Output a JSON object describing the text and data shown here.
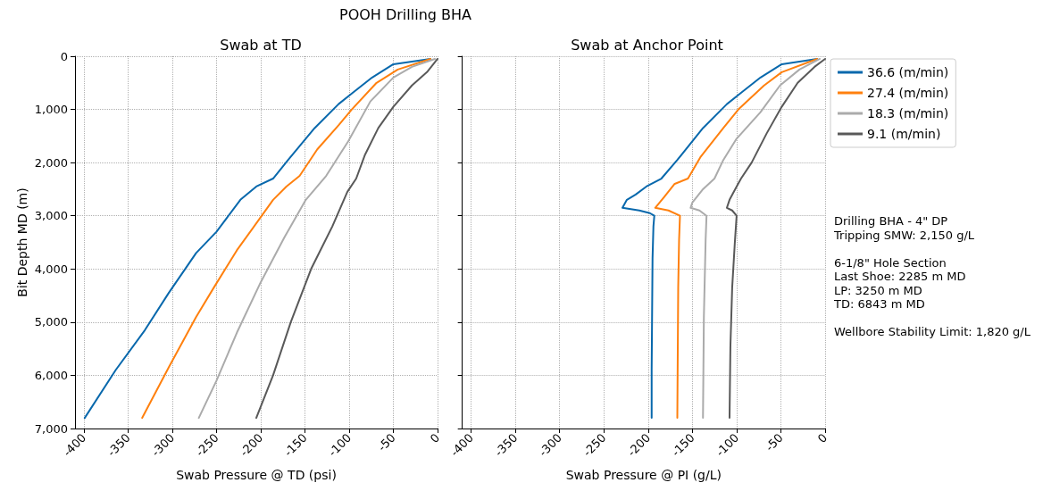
{
  "chart_data": [
    {
      "type": "line",
      "title": "Swab at TD",
      "annotations": [
        "POOH Drilling BHA"
      ],
      "xlabel": "Swab Pressure @ TD (psi)",
      "ylabel": "Bit Depth MD (m)",
      "xlim": [
        -410,
        0
      ],
      "ylim": [
        7000,
        0
      ],
      "xticks": [
        -400,
        -350,
        -300,
        -250,
        -200,
        -150,
        -100,
        -50,
        0
      ],
      "yticks": [
        0,
        {
          "value": 1000,
          "label": "1,000"
        },
        {
          "value": 2000,
          "label": "2,000"
        },
        {
          "value": 3000,
          "label": "3,000"
        },
        {
          "value": 4000,
          "label": "4,000"
        },
        {
          "value": 5000,
          "label": "5,000"
        },
        {
          "value": 6000,
          "label": "6,000"
        },
        {
          "value": 7000,
          "label": "7,000"
        }
      ],
      "grid": true,
      "legend": false,
      "line_style": "solid",
      "marker": "none",
      "series": [
        {
          "color": "#0868ac",
          "x": [
            -8,
            -50,
            -74,
            -97,
            -112,
            -139,
            -169,
            -186,
            -205,
            -223,
            -250,
            -273,
            -304,
            -331,
            -364,
            -399
          ],
          "values": [
            50,
            150,
            400,
            700,
            900,
            1350,
            1950,
            2300,
            2450,
            2700,
            3300,
            3700,
            4450,
            5150,
            5900,
            6800
          ]
        },
        {
          "color": "#ff800e",
          "x": [
            -8,
            -45,
            -69,
            -97,
            -112,
            -136,
            -156,
            -171,
            -186,
            -201,
            -227,
            -253,
            -273,
            -304,
            -334
          ],
          "values": [
            50,
            250,
            500,
            1000,
            1300,
            1750,
            2250,
            2450,
            2700,
            3050,
            3650,
            4350,
            4900,
            5850,
            6800
          ]
        },
        {
          "color": "#ababab",
          "x": [
            -3,
            -29,
            -50,
            -76,
            -101,
            -126,
            -149,
            -173,
            -200,
            -227,
            -250,
            -270
          ],
          "values": [
            50,
            200,
            400,
            850,
            1600,
            2250,
            2700,
            3400,
            4250,
            5200,
            6100,
            6800
          ]
        },
        {
          "color": "#595959",
          "x": [
            0,
            -12,
            -29,
            -50,
            -67,
            -82,
            -92,
            -102,
            -119,
            -143,
            -166,
            -186,
            -205
          ],
          "values": [
            50,
            300,
            550,
            950,
            1350,
            1850,
            2300,
            2550,
            3200,
            4000,
            5000,
            6000,
            6800
          ]
        }
      ]
    },
    {
      "type": "line",
      "title": "Swab at Anchor Point",
      "annotations": [
        "Drilling BHA - 4\" DP\nTripping SMW: 2,150 g/L",
        "6-1/8\" Hole Section\nLast Shoe: 2285 m MD\nLP: 3250 m MD\nTD: 6843 m MD",
        "Wellbore Stability Limit: 1,820 g/L"
      ],
      "xlabel": "Swab Pressure @ PI (g/L)",
      "xlim": [
        -410,
        0
      ],
      "ylim": [
        7000,
        0
      ],
      "xticks": [
        -400,
        -350,
        -300,
        -250,
        -200,
        -150,
        -100,
        -50,
        0
      ],
      "yticks": [
        {
          "value": 0,
          "label": null
        },
        {
          "value": 1000,
          "label": null
        },
        {
          "value": 2000,
          "label": null
        },
        {
          "value": 3000,
          "label": null
        },
        {
          "value": 4000,
          "label": null
        },
        {
          "value": 5000,
          "label": null
        },
        {
          "value": 6000,
          "label": null
        },
        {
          "value": 7000,
          "label": null
        }
      ],
      "tick_labels": "x",
      "grid": true,
      "legend": "top right",
      "line_style": "solid",
      "marker": "none",
      "series": [
        {
          "name": "36.6 (m/min)",
          "color": "#0868ac",
          "x": [
            -9,
            -49,
            -73,
            -96,
            -111,
            -138,
            -167,
            -185,
            -202,
            -214,
            -224,
            -229,
            -210,
            -198,
            -193,
            -194,
            -195,
            -196,
            -196
          ],
          "values": [
            50,
            150,
            400,
            700,
            900,
            1350,
            1950,
            2300,
            2450,
            2600,
            2700,
            2850,
            2900,
            2950,
            3000,
            3200,
            3800,
            5900,
            6800
          ]
        },
        {
          "name": "27.4 (m/min)",
          "color": "#ff800e",
          "x": [
            -9,
            -49,
            -69,
            -98,
            -115,
            -141,
            -155,
            -170,
            -182,
            -192,
            -177,
            -164,
            -165,
            -166,
            -167
          ],
          "values": [
            50,
            300,
            550,
            1000,
            1350,
            1900,
            2300,
            2400,
            2650,
            2850,
            2900,
            3000,
            3450,
            4350,
            6800
          ]
        },
        {
          "name": "18.3 (m/min)",
          "color": "#ababab",
          "x": [
            -6,
            -29,
            -51,
            -73,
            -100,
            -115,
            -125,
            -138,
            -150,
            -152,
            -142,
            -134,
            -135,
            -137,
            -138
          ],
          "values": [
            50,
            250,
            550,
            1050,
            1550,
            1950,
            2300,
            2500,
            2750,
            2850,
            2900,
            3000,
            3450,
            4900,
            6800
          ]
        },
        {
          "name": "9.1 (m/min)",
          "color": "#595959",
          "x": [
            0,
            -12,
            -31,
            -49,
            -66,
            -83,
            -95,
            -100,
            -108,
            -111,
            -105,
            -100,
            -102,
            -105,
            -107,
            -108
          ],
          "values": [
            50,
            200,
            500,
            950,
            1450,
            2000,
            2300,
            2450,
            2700,
            2850,
            2900,
            3000,
            3500,
            4350,
            5450,
            6800
          ]
        }
      ]
    }
  ]
}
